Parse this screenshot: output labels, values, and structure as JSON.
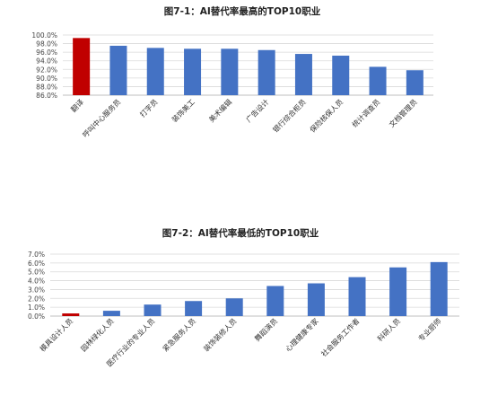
{
  "chart_data": [
    {
      "type": "bar",
      "title": "图7-1：AI替代率最高的TOP10职业",
      "categories": [
        "翻译",
        "呼叫中心服务员",
        "打字员",
        "装饰美工",
        "美术编辑",
        "广告设计",
        "银行综合柜员",
        "保险核保人员",
        "统计调查员",
        "文档管理员"
      ],
      "values": [
        99.3,
        97.5,
        97.0,
        96.8,
        96.8,
        96.5,
        95.6,
        95.2,
        92.6,
        91.8
      ],
      "highlight_index": 0,
      "colors": {
        "highlight": "#C00000",
        "bar": "#4472C4"
      },
      "ylim": [
        86,
        100
      ],
      "yticks": [
        "86.0%",
        "88.0%",
        "90.0%",
        "92.0%",
        "94.0%",
        "96.0%",
        "98.0%",
        "100.0%"
      ],
      "grid": true
    },
    {
      "type": "bar",
      "title": "图7-2：AI替代率最低的TOP10职业",
      "categories": [
        "模具设计人员",
        "园林绿化人员",
        "医疗行业的专业人员",
        "紧急服务人员",
        "装饰装修人员",
        "舞蹈演员",
        "心理健康专家",
        "社会服务工作者",
        "科研人员",
        "专业厨师"
      ],
      "values": [
        0.3,
        0.6,
        1.3,
        1.7,
        2.0,
        3.4,
        3.7,
        4.4,
        5.5,
        6.1
      ],
      "highlight_index": 0,
      "colors": {
        "highlight": "#C00000",
        "bar": "#4472C4"
      },
      "ylim": [
        0,
        7
      ],
      "yticks": [
        "0.0%",
        "1.0%",
        "2.0%",
        "3.0%",
        "4.0%",
        "5.0%",
        "6.0%",
        "7.0%"
      ],
      "grid": true
    }
  ]
}
